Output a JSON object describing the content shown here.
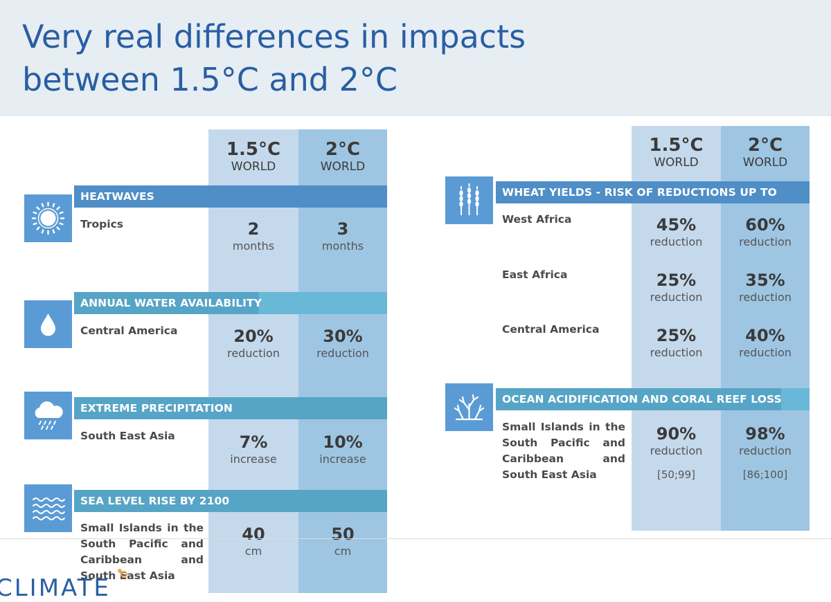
{
  "title": "Very real differences in impacts\nbetween 1.5°C  and 2°C",
  "colors": {
    "title": "#2a5ea3",
    "col_15": "#c5d9ec",
    "col_2": "#9ec6e3",
    "band_dark": "#4f8ec7",
    "band_teal": "#56a4c6",
    "icon_box": "#5b9bd5"
  },
  "left_panel": {
    "col_15": {
      "degree": "1.5°C",
      "world": "WORLD"
    },
    "col_2": {
      "degree": "2°C",
      "world": "WORLD"
    },
    "sections": [
      {
        "icon": "sun-icon",
        "heading": "HEATWAVES",
        "region": "Tropics",
        "v15": {
          "value": "2",
          "unit": "months"
        },
        "v2": {
          "value": "3",
          "unit": "months"
        }
      },
      {
        "icon": "water-drop-icon",
        "heading": "ANNUAL WATER AVAILABILITY",
        "region": "Central America",
        "v15": {
          "value": "20%",
          "unit": "reduction"
        },
        "v2": {
          "value": "30%",
          "unit": "reduction"
        }
      },
      {
        "icon": "rain-cloud-icon",
        "heading": "EXTREME PRECIPITATION",
        "region": "South East Asia",
        "v15": {
          "value": "7%",
          "unit": "increase"
        },
        "v2": {
          "value": "10%",
          "unit": "increase"
        }
      },
      {
        "icon": "waves-icon",
        "heading": "SEA LEVEL RISE BY 2100",
        "region": "Small Islands in the South Pacific and Caribbean and South East Asia",
        "v15": {
          "value": "40",
          "unit": "cm"
        },
        "v2": {
          "value": "50",
          "unit": "cm"
        }
      }
    ]
  },
  "right_panel": {
    "col_15": {
      "degree": "1.5°C",
      "world": "WORLD"
    },
    "col_2": {
      "degree": "2°C",
      "world": "WORLD"
    },
    "wheat": {
      "icon": "wheat-icon",
      "heading": "WHEAT YIELDS - RISK OF REDUCTIONS UP TO",
      "rows": [
        {
          "region": "West Africa",
          "v15": {
            "value": "45%",
            "unit": "reduction"
          },
          "v2": {
            "value": "60%",
            "unit": "reduction"
          }
        },
        {
          "region": "East Africa",
          "v15": {
            "value": "25%",
            "unit": "reduction"
          },
          "v2": {
            "value": "35%",
            "unit": "reduction"
          }
        },
        {
          "region": "Central America",
          "v15": {
            "value": "25%",
            "unit": "reduction"
          },
          "v2": {
            "value": "40%",
            "unit": "reduction"
          }
        }
      ]
    },
    "coral": {
      "icon": "coral-icon",
      "heading": "OCEAN ACIDIFICATION AND CORAL REEF LOSS",
      "region": "Small Islands in the South Pacific and Caribbean and South East Asia",
      "v15": {
        "value": "90%",
        "unit": "reduction",
        "range": "[50;99]"
      },
      "v2": {
        "value": "98%",
        "unit": "reduction",
        "range": "[86;100]"
      }
    }
  },
  "footer": {
    "logo_text": "CLIMATE"
  }
}
